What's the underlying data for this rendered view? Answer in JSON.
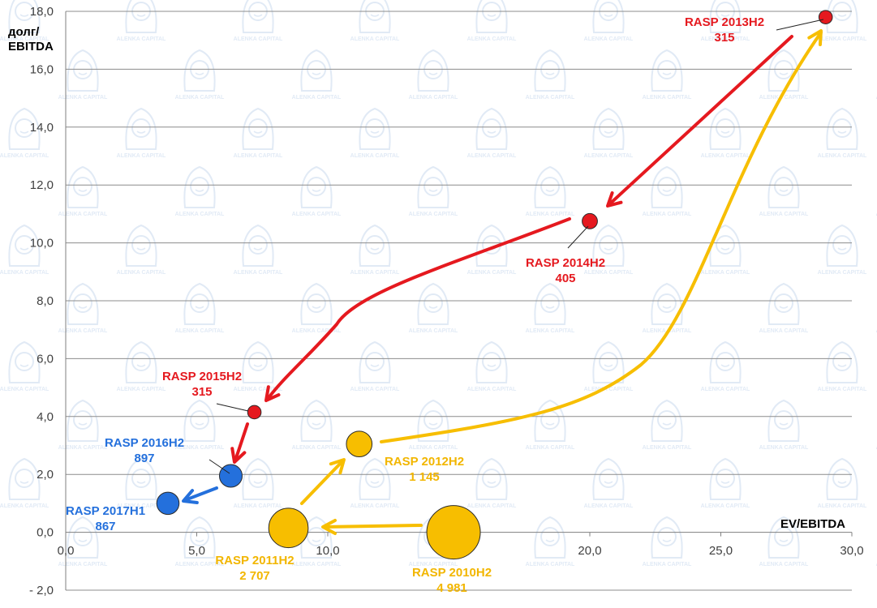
{
  "chart_data": {
    "type": "scatter",
    "subtype": "bubble",
    "title": "",
    "xlabel": "EV/EBITDA",
    "ylabel_lines": [
      "долг/",
      "EBITDA"
    ],
    "xlim": [
      0,
      30
    ],
    "ylim": [
      -2,
      18
    ],
    "x_ticks": [
      "0,0",
      "5,0",
      "10,0",
      "15,0",
      "20,0",
      "25,0",
      "30,0"
    ],
    "y_ticks": [
      "- 2,0",
      "0,0",
      "2,0",
      "4,0",
      "6,0",
      "8,0",
      "10,0",
      "12,0",
      "14,0",
      "16,0",
      "18,0"
    ],
    "grid": "horizontal",
    "colors": {
      "red": "#e5191f",
      "yellow": "#f7be00",
      "blue": "#2470dc",
      "label_yellow": "#f2b600"
    },
    "watermark": "ALENKA CAPITAL",
    "points": [
      {
        "name": "RASP 2010H2",
        "value": "4 981",
        "x": 14.8,
        "y": 0.0,
        "size": 4981,
        "color": "yellow"
      },
      {
        "name": "RASP 2011H2",
        "value": "2 707",
        "x": 8.5,
        "y": 0.15,
        "size": 2707,
        "color": "yellow"
      },
      {
        "name": "RASP 2012H2",
        "value": "1 145",
        "x": 11.2,
        "y": 3.05,
        "size": 1145,
        "color": "yellow"
      },
      {
        "name": "RASP 2013H2",
        "value": "315",
        "x": 29.0,
        "y": 17.8,
        "size": 315,
        "color": "red"
      },
      {
        "name": "RASP 2014H2",
        "value": "405",
        "x": 20.0,
        "y": 10.75,
        "size": 405,
        "color": "red"
      },
      {
        "name": "RASP 2015H2",
        "value": "315",
        "x": 7.2,
        "y": 4.15,
        "size": 315,
        "color": "red"
      },
      {
        "name": "RASP 2016H2",
        "value": "897",
        "x": 6.3,
        "y": 1.95,
        "size": 897,
        "color": "blue"
      },
      {
        "name": "RASP 2017H1",
        "value": "867",
        "x": 3.9,
        "y": 1.0,
        "size": 867,
        "color": "blue"
      }
    ]
  }
}
